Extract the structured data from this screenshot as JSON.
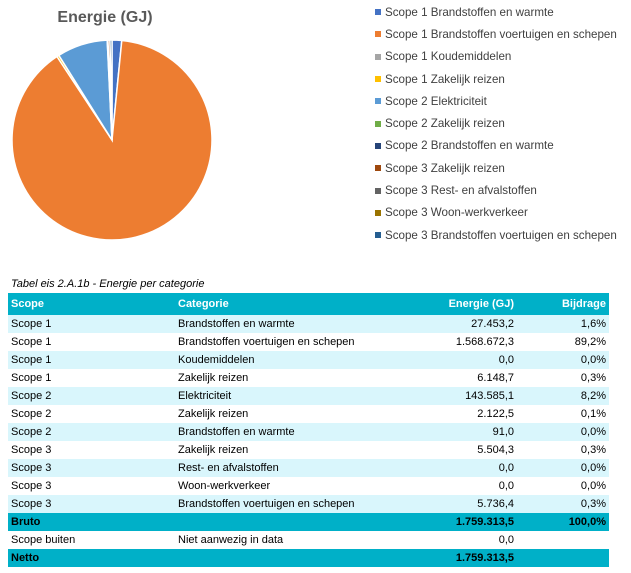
{
  "chart_data": {
    "type": "pie",
    "title": "Energie (GJ)",
    "series": [
      {
        "name": "Scope 1 Brandstoffen en warmte",
        "value": 27453.2,
        "color": "#4472C4"
      },
      {
        "name": "Scope 1 Brandstoffen voertuigen en schepen",
        "value": 1568672.3,
        "color": "#ED7D31"
      },
      {
        "name": "Scope 1 Koudemiddelen",
        "value": 0.0,
        "color": "#A5A5A5"
      },
      {
        "name": "Scope 1 Zakelijk reizen",
        "value": 6148.7,
        "color": "#FFC000"
      },
      {
        "name": "Scope 2 Elektriciteit",
        "value": 143585.1,
        "color": "#5B9BD5"
      },
      {
        "name": "Scope 2 Zakelijk reizen",
        "value": 2122.5,
        "color": "#70AD47"
      },
      {
        "name": "Scope 2 Brandstoffen en warmte",
        "value": 91.0,
        "color": "#264478"
      },
      {
        "name": "Scope 3 Zakelijk reizen",
        "value": 5504.3,
        "color": "#9E480E"
      },
      {
        "name": "Scope 3 Rest- en afvalstoffen",
        "value": 0.0,
        "color": "#636363"
      },
      {
        "name": "Scope 3 Woon-werkverkeer",
        "value": 0.0,
        "color": "#997300"
      },
      {
        "name": "Scope 3 Brandstoffen voertuigen en schepen",
        "value": 5736.4,
        "color": "#255E91"
      }
    ],
    "legend_position": "right"
  },
  "table": {
    "caption": "Tabel eis 2.A.1b - Energie per categorie",
    "headers": [
      "Scope",
      "Categorie",
      "Energie (GJ)",
      "Bijdrage"
    ],
    "rows": [
      [
        "Scope 1",
        "Brandstoffen en warmte",
        "27.453,2",
        "1,6%"
      ],
      [
        "Scope 1",
        "Brandstoffen voertuigen en schepen",
        "1.568.672,3",
        "89,2%"
      ],
      [
        "Scope 1",
        "Koudemiddelen",
        "0,0",
        "0,0%"
      ],
      [
        "Scope 1",
        "Zakelijk reizen",
        "6.148,7",
        "0,3%"
      ],
      [
        "Scope 2",
        "Elektriciteit",
        "143.585,1",
        "8,2%"
      ],
      [
        "Scope 2",
        "Zakelijk reizen",
        "2.122,5",
        "0,1%"
      ],
      [
        "Scope 2",
        "Brandstoffen en warmte",
        "91,0",
        "0,0%"
      ],
      [
        "Scope 3",
        "Zakelijk reizen",
        "5.504,3",
        "0,3%"
      ],
      [
        "Scope 3",
        "Rest- en afvalstoffen",
        "0,0",
        "0,0%"
      ],
      [
        "Scope 3",
        "Woon-werkverkeer",
        "0,0",
        "0,0%"
      ],
      [
        "Scope 3",
        "Brandstoffen voertuigen en schepen",
        "5.736,4",
        "0,3%"
      ]
    ],
    "bruto": {
      "label": "Bruto",
      "value": "1.759.313,5",
      "share": "100,0%"
    },
    "buiten": {
      "label": "Scope buiten",
      "category": "Niet aanwezig in data",
      "value": "0,0"
    },
    "netto": {
      "label": "Netto",
      "value": "1.759.313,5"
    }
  }
}
